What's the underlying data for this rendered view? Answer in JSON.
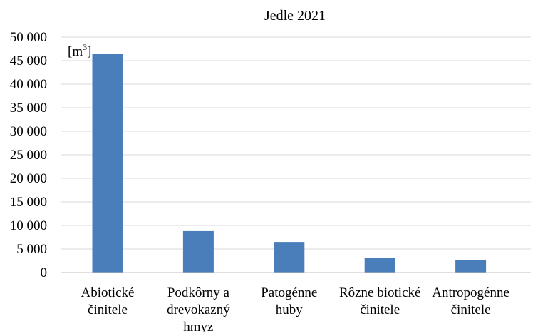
{
  "chart_data": {
    "type": "bar",
    "title": "Jedle 2021",
    "unit_label": "[m",
    "unit_superscript": "3",
    "unit_close": "]",
    "categories": [
      [
        "Abiotické",
        "činitele"
      ],
      [
        "Podkôrny a",
        "drevokazný",
        "hmyz"
      ],
      [
        "Patogénne",
        "huby"
      ],
      [
        "Rôzne biotické",
        "činitele"
      ],
      [
        "Antropogénne",
        "činitele"
      ]
    ],
    "values": [
      46400,
      8800,
      6500,
      3100,
      2600
    ],
    "ylim": [
      0,
      50000
    ],
    "yticks": [
      0,
      5000,
      10000,
      15000,
      20000,
      25000,
      30000,
      35000,
      40000,
      45000,
      50000
    ],
    "ytick_labels": [
      "0",
      "5 000",
      "10 000",
      "15 000",
      "20 000",
      "25 000",
      "30 000",
      "35 000",
      "40 000",
      "45 000",
      "50 000"
    ],
    "grid": true,
    "bar_color": "#4a7ebb",
    "grid_color": "#d9d9d9",
    "axis_color": "#bfbfbf"
  }
}
